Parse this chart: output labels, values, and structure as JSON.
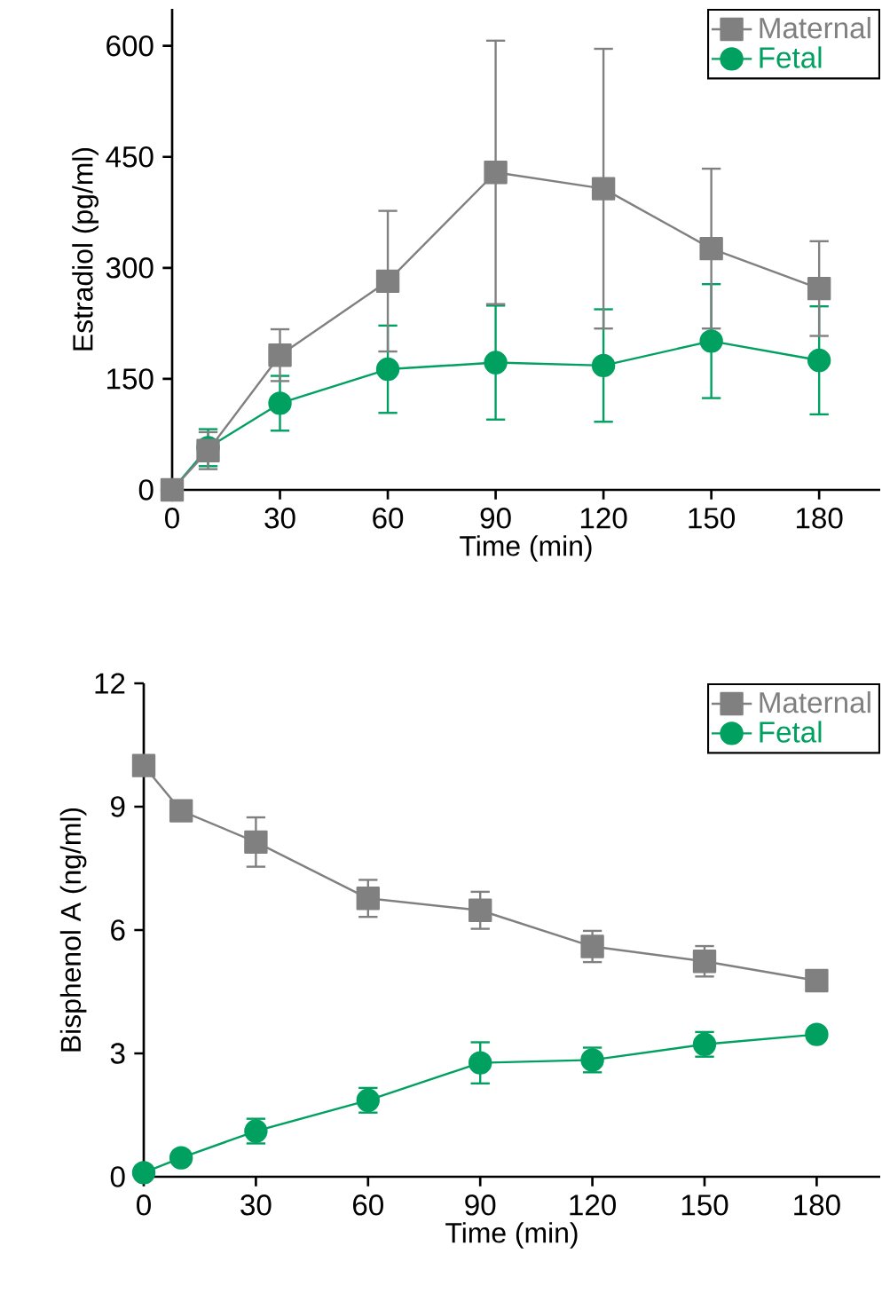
{
  "chart_data": [
    {
      "type": "line",
      "xlabel": "Time (min)",
      "ylabel": "Estradiol (pg/ml)",
      "x": [
        0,
        10,
        30,
        60,
        90,
        120,
        150,
        180
      ],
      "xlim": [
        0,
        197
      ],
      "xticks": [
        0,
        30,
        60,
        90,
        120,
        150,
        180
      ],
      "ylim": [
        0,
        650
      ],
      "yticks": [
        0,
        150,
        300,
        450,
        600
      ],
      "legend": "top right",
      "series": [
        {
          "name": "Maternal",
          "color": "#808080",
          "marker": "square",
          "values": [
            0,
            53,
            182,
            282,
            429,
            407,
            326,
            272
          ],
          "errors": [
            null,
            25,
            35,
            95,
            178,
            189,
            108,
            64
          ]
        },
        {
          "name": "Fetal",
          "color": "#00a060",
          "marker": "circle",
          "values": [
            0,
            57,
            117,
            163,
            172,
            168,
            201,
            175
          ],
          "errors": [
            null,
            25,
            37,
            59,
            77,
            76,
            77,
            73
          ]
        }
      ]
    },
    {
      "type": "line",
      "xlabel": "Time (min)",
      "ylabel": "Bisphenol A (ng/ml)",
      "x": [
        0,
        10,
        30,
        60,
        90,
        120,
        150,
        180
      ],
      "xlim": [
        0,
        197
      ],
      "xticks": [
        0,
        30,
        60,
        90,
        120,
        150,
        180
      ],
      "ylim": [
        0,
        12
      ],
      "yticks": [
        0,
        3,
        6,
        9,
        12
      ],
      "legend": "top right",
      "series": [
        {
          "name": "Maternal",
          "color": "#808080",
          "marker": "square",
          "values": [
            10.0,
            8.9,
            8.14,
            6.77,
            6.48,
            5.6,
            5.24,
            4.77
          ],
          "errors": [
            null,
            0.2,
            0.6,
            0.45,
            0.45,
            0.38,
            0.37,
            0.2
          ]
        },
        {
          "name": "Fetal",
          "color": "#00a060",
          "marker": "circle",
          "values": [
            0.1,
            0.46,
            1.11,
            1.86,
            2.77,
            2.84,
            3.22,
            3.46
          ],
          "errors": [
            null,
            null,
            0.3,
            0.3,
            0.5,
            0.3,
            0.3,
            null
          ]
        }
      ]
    }
  ]
}
